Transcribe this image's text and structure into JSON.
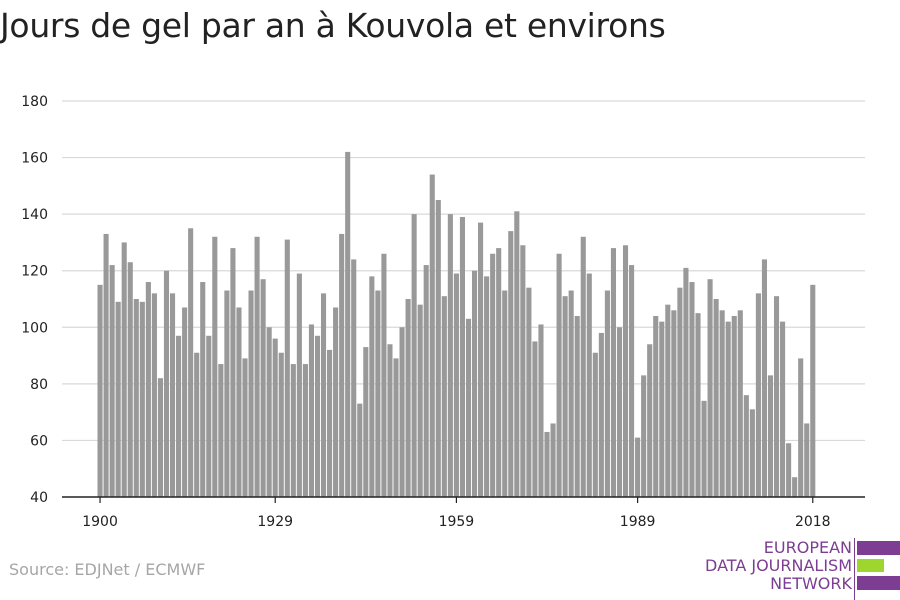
{
  "title": "Jours de gel par an à Kouvola et environs",
  "source": "Source: EDJNet / ECMWF",
  "logo": {
    "lines": [
      "EUROPEAN",
      "DATA JOURNALISM",
      "NETWORK"
    ],
    "colors": {
      "primary": "#7c3d92",
      "accent": "#9ed52f"
    }
  },
  "chart_data": {
    "type": "bar",
    "title": "Jours de gel par an à Kouvola et environs",
    "xlabel": "",
    "ylabel": "",
    "ylim": [
      40,
      180
    ],
    "yticks": [
      40,
      60,
      80,
      100,
      120,
      140,
      160,
      180
    ],
    "xticks": [
      1900,
      1929,
      1959,
      1989,
      2018
    ],
    "grid": true,
    "bar_color": "#999999",
    "x": [
      1900,
      1901,
      1902,
      1903,
      1904,
      1905,
      1906,
      1907,
      1908,
      1909,
      1910,
      1911,
      1912,
      1913,
      1914,
      1915,
      1916,
      1917,
      1918,
      1919,
      1920,
      1921,
      1922,
      1923,
      1924,
      1925,
      1926,
      1927,
      1928,
      1929,
      1930,
      1931,
      1932,
      1933,
      1934,
      1935,
      1936,
      1937,
      1938,
      1939,
      1940,
      1941,
      1942,
      1943,
      1944,
      1945,
      1946,
      1947,
      1948,
      1949,
      1950,
      1951,
      1952,
      1953,
      1954,
      1955,
      1956,
      1957,
      1958,
      1959,
      1960,
      1961,
      1962,
      1963,
      1964,
      1965,
      1966,
      1967,
      1968,
      1969,
      1970,
      1971,
      1972,
      1973,
      1974,
      1975,
      1976,
      1977,
      1978,
      1979,
      1980,
      1981,
      1982,
      1983,
      1984,
      1985,
      1986,
      1987,
      1988,
      1989,
      1990,
      1991,
      1992,
      1993,
      1994,
      1995,
      1996,
      1997,
      1998,
      1999,
      2000,
      2001,
      2002,
      2003,
      2004,
      2005,
      2006,
      2007,
      2008,
      2009,
      2010,
      2011,
      2012,
      2013,
      2014,
      2015,
      2016,
      2017,
      2018
    ],
    "values": [
      115,
      133,
      122,
      109,
      130,
      123,
      110,
      109,
      116,
      112,
      82,
      120,
      112,
      97,
      107,
      135,
      91,
      116,
      97,
      132,
      87,
      113,
      128,
      107,
      89,
      113,
      132,
      117,
      100,
      96,
      91,
      131,
      87,
      119,
      87,
      101,
      97,
      112,
      92,
      107,
      133,
      162,
      124,
      73,
      93,
      118,
      113,
      126,
      94,
      89,
      100,
      110,
      140,
      108,
      122,
      154,
      145,
      111,
      140,
      119,
      139,
      103,
      120,
      137,
      118,
      126,
      128,
      113,
      134,
      141,
      129,
      114,
      95,
      101,
      63,
      66,
      126,
      111,
      113,
      104,
      132,
      119,
      91,
      98,
      113,
      128,
      100,
      129,
      122,
      61,
      83,
      94,
      104,
      102,
      108,
      106,
      114,
      121,
      116,
      105,
      74,
      117,
      110,
      106,
      102,
      104,
      106,
      76,
      71,
      112,
      124,
      83,
      111,
      102,
      59,
      47,
      89,
      66,
      115
    ]
  }
}
